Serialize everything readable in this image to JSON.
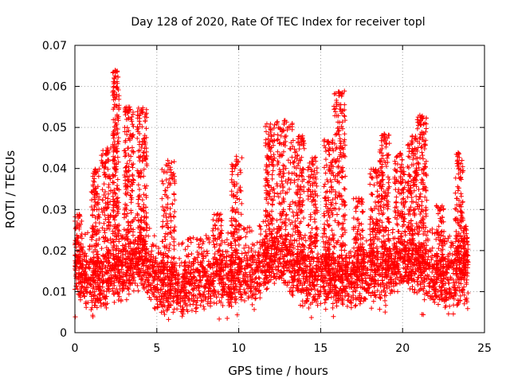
{
  "chart_data": {
    "type": "scatter",
    "title": "Day 128 of 2020, Rate Of TEC Index for receiver topl",
    "xlabel": "GPS time / hours",
    "ylabel": "ROTI / TECUs",
    "xlim": [
      0,
      25
    ],
    "ylim": [
      0,
      0.07
    ],
    "xticks": [
      0,
      5,
      10,
      15,
      20,
      25
    ],
    "yticks": [
      0,
      0.01,
      0.02,
      0.03,
      0.04,
      0.05,
      0.06,
      0.07
    ],
    "xtick_labels": [
      "0",
      "5",
      "10",
      "15",
      "20",
      "25"
    ],
    "ytick_labels": [
      "0",
      "0.01",
      "0.02",
      "0.03",
      "0.04",
      "0.05",
      "0.06",
      "0.07"
    ],
    "grid": true,
    "marker": "plus",
    "color": "#ff0000",
    "x_range": [
      0,
      24
    ],
    "baseline": [
      [
        0.0,
        0.015
      ],
      [
        0.5,
        0.013
      ],
      [
        1.0,
        0.012
      ],
      [
        1.5,
        0.011
      ],
      [
        2.0,
        0.012
      ],
      [
        2.5,
        0.014
      ],
      [
        3.0,
        0.013
      ],
      [
        3.5,
        0.016
      ],
      [
        4.0,
        0.017
      ],
      [
        4.5,
        0.014
      ],
      [
        5.0,
        0.011
      ],
      [
        5.5,
        0.01
      ],
      [
        6.0,
        0.011
      ],
      [
        6.5,
        0.01
      ],
      [
        7.0,
        0.011
      ],
      [
        7.5,
        0.012
      ],
      [
        8.0,
        0.012
      ],
      [
        8.5,
        0.012
      ],
      [
        9.0,
        0.013
      ],
      [
        9.5,
        0.012
      ],
      [
        10.0,
        0.013
      ],
      [
        10.5,
        0.014
      ],
      [
        11.0,
        0.014
      ],
      [
        11.5,
        0.016
      ],
      [
        12.0,
        0.017
      ],
      [
        12.5,
        0.018
      ],
      [
        13.0,
        0.016
      ],
      [
        13.5,
        0.014
      ],
      [
        14.0,
        0.013
      ],
      [
        14.5,
        0.012
      ],
      [
        15.0,
        0.013
      ],
      [
        15.5,
        0.013
      ],
      [
        16.0,
        0.012
      ],
      [
        16.5,
        0.012
      ],
      [
        17.0,
        0.012
      ],
      [
        17.5,
        0.013
      ],
      [
        18.0,
        0.014
      ],
      [
        18.5,
        0.014
      ],
      [
        19.0,
        0.013
      ],
      [
        19.5,
        0.016
      ],
      [
        20.0,
        0.017
      ],
      [
        20.5,
        0.016
      ],
      [
        21.0,
        0.015
      ],
      [
        21.5,
        0.014
      ],
      [
        22.0,
        0.013
      ],
      [
        22.5,
        0.012
      ],
      [
        23.0,
        0.012
      ],
      [
        23.5,
        0.013
      ],
      [
        24.0,
        0.012
      ]
    ],
    "bursts": [
      {
        "x": [
          0.0,
          0.5
        ],
        "ymax": 0.029
      },
      {
        "x": [
          1.0,
          1.5
        ],
        "ymax": 0.04
      },
      {
        "x": [
          1.6,
          2.2
        ],
        "ymax": 0.045
      },
      {
        "x": [
          2.3,
          2.7
        ],
        "ymax": 0.064
      },
      {
        "x": [
          3.0,
          3.6
        ],
        "ymax": 0.055
      },
      {
        "x": [
          3.8,
          4.4
        ],
        "ymax": 0.055
      },
      {
        "x": [
          5.3,
          6.1
        ],
        "ymax": 0.042
      },
      {
        "x": [
          8.4,
          9.0
        ],
        "ymax": 0.029
      },
      {
        "x": [
          9.5,
          10.2
        ],
        "ymax": 0.043
      },
      {
        "x": [
          11.6,
          12.2
        ],
        "ymax": 0.051
      },
      {
        "x": [
          12.3,
          13.3
        ],
        "ymax": 0.052
      },
      {
        "x": [
          13.3,
          14.0
        ],
        "ymax": 0.048
      },
      {
        "x": [
          14.2,
          14.8
        ],
        "ymax": 0.043
      },
      {
        "x": [
          15.2,
          15.8
        ],
        "ymax": 0.047
      },
      {
        "x": [
          15.8,
          16.5
        ],
        "ymax": 0.059
      },
      {
        "x": [
          17.0,
          17.6
        ],
        "ymax": 0.033
      },
      {
        "x": [
          18.0,
          18.6
        ],
        "ymax": 0.04
      },
      {
        "x": [
          18.6,
          19.2
        ],
        "ymax": 0.049
      },
      {
        "x": [
          19.5,
          20.2
        ],
        "ymax": 0.044
      },
      {
        "x": [
          20.3,
          20.9
        ],
        "ymax": 0.048
      },
      {
        "x": [
          20.9,
          21.5
        ],
        "ymax": 0.053
      },
      {
        "x": [
          22.0,
          22.6
        ],
        "ymax": 0.031
      },
      {
        "x": [
          23.2,
          23.7
        ],
        "ymax": 0.044
      },
      {
        "x": [
          23.7,
          24.0
        ],
        "ymax": 0.026
      }
    ]
  }
}
